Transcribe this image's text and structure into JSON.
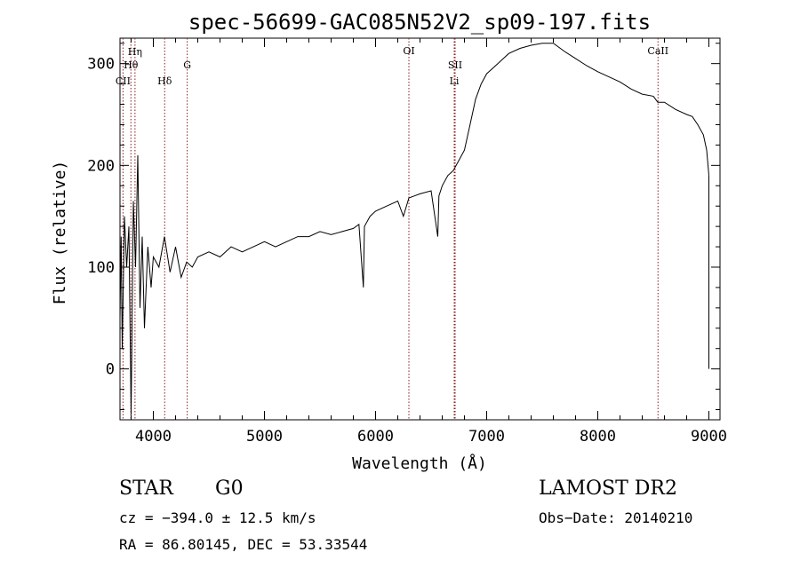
{
  "chart_data": {
    "type": "line",
    "title": "spec-56699-GAC085N52V2_sp09-197.fits",
    "xlabel": "Wavelength (Å)",
    "ylabel": "Flux (relative)",
    "xlim": [
      3700,
      9100
    ],
    "ylim": [
      -50,
      325
    ],
    "xticks": [
      4000,
      5000,
      6000,
      7000,
      8000,
      9000
    ],
    "yticks": [
      0,
      100,
      200,
      300
    ],
    "grid": false,
    "series": [
      {
        "x": [
          3700,
          3710,
          3720,
          3740,
          3760,
          3780,
          3800,
          3820,
          3840,
          3860,
          3880,
          3900,
          3920,
          3950,
          3980,
          4000,
          4050,
          4100,
          4150,
          4200,
          4250,
          4300,
          4350,
          4400,
          4500,
          4600,
          4700,
          4800,
          4900,
          5000,
          5100,
          5200,
          5300,
          5400,
          5500,
          5600,
          5700,
          5800,
          5850,
          5890,
          5900,
          5950,
          6000,
          6100,
          6200,
          6250,
          6300,
          6350,
          6400,
          6500,
          6560,
          6570,
          6600,
          6650,
          6700,
          6750,
          6800,
          6850,
          6900,
          6950,
          7000,
          7050,
          7100,
          7150,
          7200,
          7300,
          7400,
          7500,
          7600,
          7700,
          7800,
          7900,
          8000,
          8100,
          8200,
          8300,
          8400,
          8500,
          8540,
          8600,
          8700,
          8800,
          8850,
          8900,
          8950,
          8980,
          9000
        ],
        "y": [
          50,
          130,
          20,
          150,
          100,
          140,
          -45,
          165,
          100,
          210,
          60,
          130,
          40,
          120,
          80,
          110,
          100,
          130,
          95,
          120,
          90,
          105,
          100,
          110,
          115,
          110,
          120,
          115,
          120,
          125,
          120,
          125,
          130,
          130,
          135,
          132,
          135,
          138,
          142,
          80,
          140,
          150,
          155,
          160,
          165,
          150,
          168,
          170,
          172,
          175,
          130,
          170,
          180,
          190,
          195,
          205,
          215,
          240,
          265,
          280,
          290,
          295,
          300,
          305,
          310,
          315,
          318,
          320,
          320,
          312,
          305,
          298,
          292,
          287,
          282,
          275,
          270,
          268,
          262,
          262,
          255,
          250,
          248,
          240,
          230,
          215,
          190
        ]
      }
    ],
    "annotations": [
      {
        "label": "CII",
        "x": 3727
      },
      {
        "label": "Hθ",
        "x": 3798
      },
      {
        "label": "Hη",
        "x": 3835
      },
      {
        "label": "Hδ",
        "x": 4102
      },
      {
        "label": "G",
        "x": 4305
      },
      {
        "label": "OI",
        "x": 6300
      },
      {
        "label": "SII",
        "x": 6716
      },
      {
        "label": "Li",
        "x": 6708
      },
      {
        "label": "CaII",
        "x": 8542
      }
    ]
  },
  "info": {
    "object_class": "STAR",
    "subclass": "G0",
    "survey": "LAMOST DR2",
    "cz": "cz = −394.0 ± 12.5 km/s",
    "obs_date": "Obs−Date: 20140210",
    "coords": "RA =  86.80145, DEC =  53.33544"
  }
}
